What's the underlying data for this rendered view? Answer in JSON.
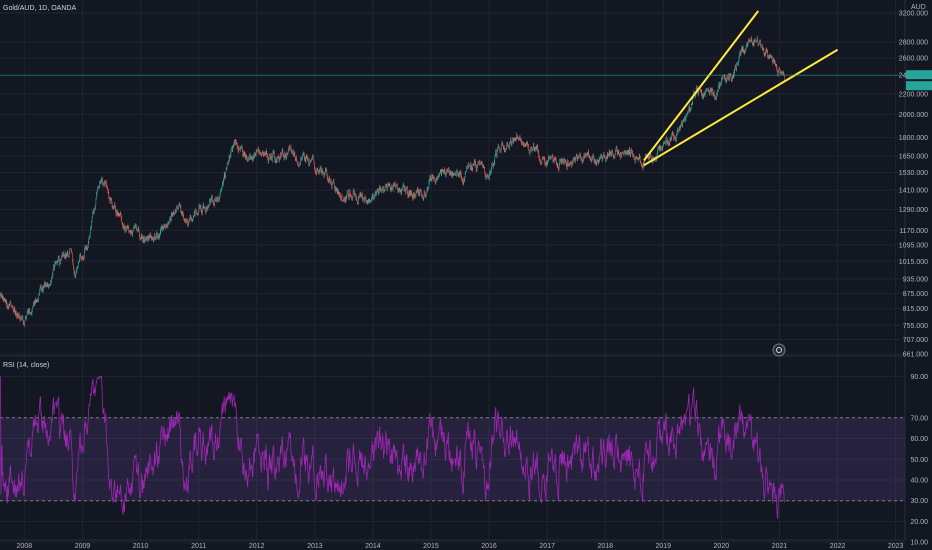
{
  "header": {
    "symbol": "Gold/AUD, 1D, OANDA",
    "currency": "AUD"
  },
  "rsi": {
    "label": "RSI (14, close)"
  },
  "colors": {
    "background": "#131722",
    "grid": "#1f2430",
    "axis_text": "#b2b5be",
    "candle_up": "#26a69a",
    "candle_down": "#ef5350",
    "trendline": "#ffeb3b",
    "rsi_line": "#9c27b0",
    "rsi_band": "rgba(126,87,194,0.18)",
    "price_marker": "#26a69a"
  },
  "chart_data": [
    {
      "type": "candlestick",
      "scale": "log",
      "ylim": [
        661,
        3200
      ],
      "xlim": [
        "2007-08-01",
        "2023-03-01"
      ],
      "y_ticks": [
        "3200.000",
        "2800.000",
        "2600.000",
        "2400.000",
        "2200.000",
        "2000.000",
        "1800.000",
        "1650.000",
        "1530.000",
        "1410.000",
        "1290.000",
        "1170.000",
        "1095.000",
        "1015.000",
        "935.000",
        "875.000",
        "815.000",
        "755.000",
        "707.000",
        "661.000"
      ],
      "x_ticks": [
        "2008",
        "2009",
        "2010",
        "2011",
        "2012",
        "2013",
        "2014",
        "2015",
        "2016",
        "2017",
        "2018",
        "2019",
        "2020",
        "2021",
        "2022",
        "2023"
      ],
      "current_price": 2400,
      "series_approx": {
        "x": [
          "2007-08-01",
          "2007-11-01",
          "2008-01-15",
          "2008-03-15",
          "2008-06-01",
          "2008-08-01",
          "2008-10-15",
          "2008-11-15",
          "2009-02-15",
          "2009-05-01",
          "2009-08-01",
          "2009-11-01",
          "2010-01-15",
          "2010-05-01",
          "2010-08-01",
          "2010-11-01",
          "2011-02-01",
          "2011-05-01",
          "2011-08-20",
          "2011-11-01",
          "2012-02-01",
          "2012-05-01",
          "2012-08-01",
          "2012-10-01",
          "2013-01-01",
          "2013-04-01",
          "2013-06-25",
          "2013-09-01",
          "2013-12-15",
          "2014-03-01",
          "2014-06-01",
          "2014-09-01",
          "2014-11-15",
          "2015-01-20",
          "2015-04-01",
          "2015-07-20",
          "2015-10-01",
          "2016-01-01",
          "2016-03-01",
          "2016-07-05",
          "2016-10-01",
          "2016-12-15",
          "2017-03-01",
          "2017-06-01",
          "2017-09-01",
          "2017-12-15",
          "2018-04-01",
          "2018-06-01",
          "2018-08-15",
          "2018-11-01",
          "2019-02-01",
          "2019-04-15",
          "2019-06-01",
          "2019-08-01",
          "2019-09-15",
          "2019-12-01",
          "2020-01-15",
          "2020-03-15",
          "2020-05-15",
          "2020-08-07",
          "2020-09-15",
          "2020-11-15",
          "2021-01-01",
          "2021-02-01"
        ],
        "y": [
          860,
          810,
          770,
          860,
          930,
          1010,
          1060,
          950,
          1150,
          1530,
          1280,
          1150,
          1120,
          1160,
          1290,
          1250,
          1310,
          1350,
          1780,
          1640,
          1660,
          1630,
          1700,
          1650,
          1580,
          1490,
          1340,
          1410,
          1330,
          1420,
          1430,
          1380,
          1390,
          1490,
          1550,
          1510,
          1600,
          1490,
          1700,
          1800,
          1710,
          1610,
          1620,
          1610,
          1650,
          1630,
          1680,
          1700,
          1600,
          1640,
          1760,
          1870,
          2000,
          2250,
          2200,
          2200,
          2350,
          2350,
          2700,
          2850,
          2700,
          2600,
          2450,
          2380
        ]
      },
      "trendlines": [
        {
          "from": [
            "2018-09-01",
            1618
          ],
          "to": [
            "2020-08-20",
            3230
          ]
        },
        {
          "from": [
            "2018-09-01",
            1582
          ],
          "to": [
            "2022-01-01",
            2700
          ]
        }
      ]
    },
    {
      "type": "line",
      "name": "RSI (14, close)",
      "ylim": [
        12,
        95
      ],
      "y_ticks": [
        "90.00",
        "70.00",
        "60.00",
        "50.00",
        "40.00",
        "30.00",
        "20.00",
        "10.00"
      ],
      "upper_band": 70,
      "lower_band": 30,
      "range_approx": [
        14,
        90
      ]
    }
  ]
}
